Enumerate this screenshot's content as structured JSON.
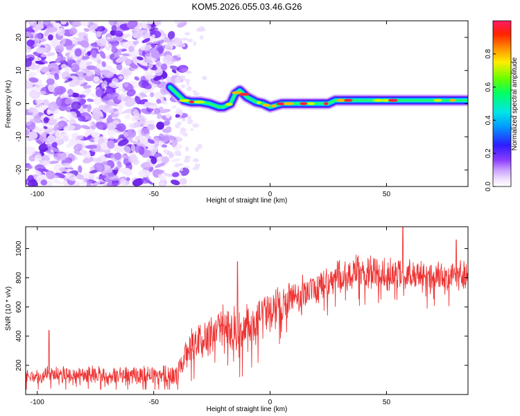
{
  "figure": {
    "title": "KOM5.2026.055.03.46.G26"
  },
  "chart_data": [
    {
      "type": "heatmap",
      "title": "KOM5.2026.055.03.46.G26",
      "xlabel": "Height of straight line (km)",
      "ylabel": "Frequency (Hz)",
      "xlim": [
        -105,
        85
      ],
      "ylim": [
        -25,
        25
      ],
      "x_ticks": [
        -100,
        -50,
        0,
        50
      ],
      "y_ticks": [
        -20,
        -10,
        0,
        10,
        20
      ],
      "colormap": "hsv-rainbow (violet → blue → cyan → green → yellow → red)",
      "trace_start_km": -43,
      "ridge": {
        "x": [
          -43,
          -40,
          -37,
          -34,
          -30,
          -26,
          -22,
          -20,
          -17,
          -15,
          -13,
          -10,
          -6,
          -3,
          0,
          5,
          10,
          15,
          20,
          25,
          28,
          32,
          36,
          40,
          45,
          50,
          55,
          60,
          65,
          70,
          75,
          80,
          85
        ],
        "y": [
          5,
          3,
          1,
          0.5,
          0.5,
          0,
          -1,
          -1,
          0,
          3,
          4,
          2,
          0.5,
          0,
          -1,
          0,
          0,
          0,
          0,
          0,
          1,
          1,
          1,
          1,
          1,
          1,
          1,
          1,
          1,
          1,
          1,
          1,
          1
        ]
      },
      "colorbar": {
        "label": "Normalized spectral amplitude",
        "range": [
          0.0,
          1.0
        ],
        "ticks": [
          0.0,
          0.2,
          0.4,
          0.6,
          0.8
        ]
      }
    },
    {
      "type": "line",
      "xlabel": "Height of straight line (km)",
      "ylabel": "SNR (10 * v/v)",
      "xlim": [
        -105,
        85
      ],
      "ylim": [
        0,
        1150
      ],
      "x_ticks": [
        -100,
        -50,
        0,
        50
      ],
      "y_ticks": [
        200,
        400,
        600,
        800,
        1000
      ],
      "color": "#ee3333",
      "series": [
        {
          "name": "SNR",
          "x": [
            -105,
            -100,
            -95,
            -90,
            -85,
            -80,
            -75,
            -70,
            -65,
            -60,
            -55,
            -50,
            -45,
            -40,
            -37,
            -34,
            -30,
            -26,
            -22,
            -18,
            -15,
            -12,
            -8,
            -4,
            0,
            5,
            10,
            15,
            20,
            25,
            30,
            35,
            40,
            45,
            50,
            55,
            60,
            65,
            70,
            75,
            80,
            85
          ],
          "y": [
            130,
            125,
            140,
            135,
            130,
            135,
            130,
            128,
            130,
            130,
            130,
            140,
            130,
            140,
            250,
            330,
            370,
            400,
            440,
            470,
            450,
            420,
            470,
            520,
            560,
            620,
            660,
            700,
            740,
            780,
            820,
            830,
            840,
            850,
            820,
            830,
            820,
            810,
            810,
            800,
            820,
            800
          ],
          "peaks": [
            [
              -95,
              440
            ],
            [
              -14,
              910
            ],
            [
              57,
              1150
            ],
            [
              80,
              1060
            ]
          ],
          "spread": [
            70,
            70,
            70,
            70,
            70,
            70,
            70,
            70,
            70,
            70,
            70,
            75,
            80,
            90,
            130,
            140,
            150,
            160,
            170,
            180,
            190,
            190,
            180,
            170,
            160,
            150,
            140,
            130,
            130,
            130,
            130,
            130,
            130,
            130,
            130,
            130,
            130,
            130,
            130,
            130,
            130,
            130
          ]
        }
      ]
    }
  ]
}
